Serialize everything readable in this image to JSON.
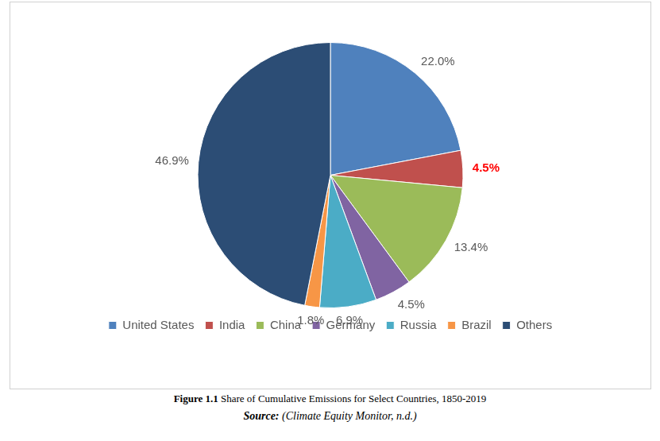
{
  "chart_data": {
    "type": "pie",
    "title": "Figure 1.1 Share of Cumulative Emissions for Select Countries, 1850-2019",
    "source": "Source: (Climate Equity Monitor, n.d.)",
    "categories": [
      "United States",
      "India",
      "China",
      "Germany",
      "Russia",
      "Brazil",
      "Others"
    ],
    "values": [
      22.0,
      4.5,
      13.4,
      4.5,
      6.9,
      1.8,
      46.9
    ],
    "value_labels": [
      "22.0%",
      "4.5%",
      "13.4%",
      "4.5%",
      "6.9%",
      "1.8%",
      "46.9%"
    ],
    "colors": [
      "#4f81bd",
      "#c0504d",
      "#9bbb59",
      "#8064a2",
      "#4bacc6",
      "#f79646",
      "#2c4d75"
    ],
    "data_labels": true,
    "legend": "bottom"
  }
}
